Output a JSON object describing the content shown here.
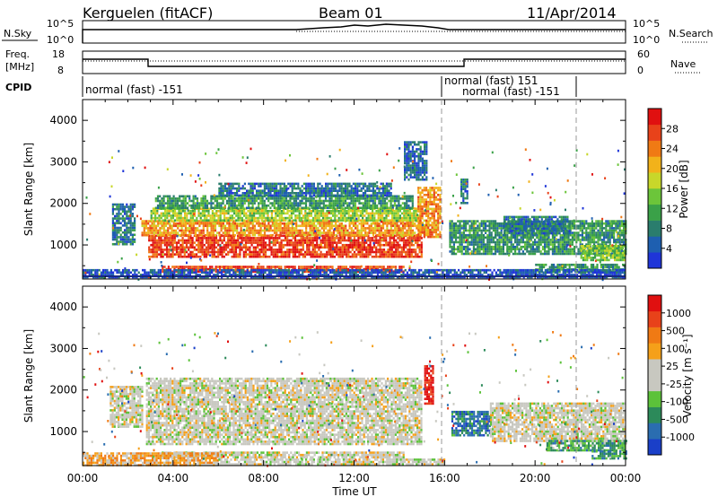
{
  "header": {
    "station": "Kerguelen (fitACF)",
    "beam": "Beam 01",
    "date": "11/Apr/2014"
  },
  "summary": {
    "nsky_label": "N.Sky",
    "nsky_ticks": [
      "10^5",
      "10^0"
    ],
    "nsearch_label": "N.Search",
    "nsearch_ticks": [
      "10^5",
      "10^0"
    ],
    "freq_label_line1": "Freq.",
    "freq_label_line2": "[MHz]",
    "freq_ticks": [
      "18",
      "8"
    ],
    "nave_label": "Nave",
    "nave_ticks": [
      "60",
      "0"
    ],
    "cpid_label": "CPID",
    "cpid_entries": [
      {
        "text": "normal (fast) -151",
        "start_hour": 0
      },
      {
        "text": "normal (fast) 151",
        "start_hour": 16
      },
      {
        "text": "normal (fast) -151",
        "start_hour": 16.9
      }
    ]
  },
  "chart_data": [
    {
      "type": "heatmap",
      "panel": "power",
      "ylabel": "Slant Range [km]",
      "xlabel": "",
      "ylim": [
        180,
        4500
      ],
      "yticks": [
        "1000",
        "2000",
        "3000",
        "4000"
      ],
      "xlim": [
        0,
        24
      ],
      "colorbar": {
        "label": "Power [dB]",
        "ticks": [
          "4",
          "8",
          "12",
          "16",
          "20",
          "24",
          "28"
        ],
        "colors": [
          "#1f35d8",
          "#1e5fb0",
          "#2a7d6d",
          "#3aa148",
          "#6cc53a",
          "#c8d72a",
          "#f2b21a",
          "#f07a14",
          "#e8421a",
          "#e01010"
        ]
      },
      "regions": [
        {
          "t0": 2.9,
          "t1": 15.0,
          "r0": 700,
          "r1": 1250,
          "level": 0.88
        },
        {
          "t0": 2.6,
          "t1": 15.3,
          "r0": 1250,
          "r1": 1600,
          "level": 0.7
        },
        {
          "t0": 3.0,
          "t1": 14.8,
          "r0": 1600,
          "r1": 1900,
          "level": 0.5
        },
        {
          "t0": 3.2,
          "t1": 14.6,
          "r0": 1900,
          "r1": 2200,
          "level": 0.32
        },
        {
          "t0": 6.0,
          "t1": 13.6,
          "r0": 2200,
          "r1": 2500,
          "level": 0.2
        },
        {
          "t0": 3.5,
          "t1": 14.2,
          "r0": 380,
          "r1": 500,
          "level": 0.85
        },
        {
          "t0": 1.3,
          "t1": 2.3,
          "r0": 1000,
          "r1": 2000,
          "level": 0.22
        },
        {
          "t0": 14.8,
          "t1": 15.8,
          "r0": 1200,
          "r1": 2400,
          "level": 0.72
        },
        {
          "t0": 16.2,
          "t1": 24.0,
          "r0": 800,
          "r1": 1600,
          "level": 0.3
        },
        {
          "t0": 18.6,
          "t1": 21.5,
          "r0": 1300,
          "r1": 1700,
          "level": 0.22
        },
        {
          "t0": 22.0,
          "t1": 24.0,
          "r0": 650,
          "r1": 1000,
          "level": 0.45
        },
        {
          "t0": 20.0,
          "t1": 24.0,
          "r0": 380,
          "r1": 550,
          "level": 0.3
        },
        {
          "t0": 0.0,
          "t1": 24.0,
          "r0": 200,
          "r1": 420,
          "level": 0.12
        },
        {
          "t0": 16.7,
          "t1": 17.0,
          "r0": 2000,
          "r1": 2600,
          "level": 0.2
        },
        {
          "t0": 14.2,
          "t1": 15.2,
          "r0": 2600,
          "r1": 3500,
          "level": 0.18
        }
      ]
    },
    {
      "type": "heatmap",
      "panel": "velocity",
      "ylabel": "Slant Range [km]",
      "xlabel": "Time UT",
      "ylim": [
        180,
        4500
      ],
      "yticks": [
        "1000",
        "2000",
        "3000",
        "4000"
      ],
      "xlim": [
        0,
        24
      ],
      "xticks": [
        "00:00",
        "04:00",
        "08:00",
        "12:00",
        "16:00",
        "20:00",
        "00:00"
      ],
      "colorbar": {
        "label": "Velocity [m s⁻¹]",
        "ticks": [
          "1000",
          "500",
          "100",
          "25",
          "-25",
          "-100",
          "-500",
          "-1000"
        ],
        "colors": [
          "#1a3fc8",
          "#2a6db0",
          "#2c8a5a",
          "#5cc23a",
          "#c8c8c0",
          "#c8c8c0",
          "#f5a019",
          "#f07a14",
          "#e8421a",
          "#e01010"
        ]
      },
      "regions": [
        {
          "t0": 2.8,
          "t1": 15.0,
          "r0": 700,
          "r1": 2300,
          "level": 0.5
        },
        {
          "t0": 3.5,
          "t1": 14.2,
          "r0": 380,
          "r1": 520,
          "level": 0.5
        },
        {
          "t0": 1.2,
          "t1": 2.6,
          "r0": 1100,
          "r1": 2100,
          "level": 0.5
        },
        {
          "t0": 15.1,
          "t1": 15.5,
          "r0": 1700,
          "r1": 2600,
          "level": 0.95
        },
        {
          "t0": 16.3,
          "t1": 18.0,
          "r0": 900,
          "r1": 1500,
          "level": 0.18
        },
        {
          "t0": 18.0,
          "t1": 24.0,
          "r0": 800,
          "r1": 1700,
          "level": 0.5
        },
        {
          "t0": 20.5,
          "t1": 24.0,
          "r0": 550,
          "r1": 800,
          "level": 0.3
        },
        {
          "t0": 22.5,
          "t1": 24.0,
          "r0": 350,
          "r1": 550,
          "level": 0.25
        },
        {
          "t0": 0.0,
          "t1": 6.0,
          "r0": 180,
          "r1": 500,
          "level": 0.65
        },
        {
          "t0": 6.0,
          "t1": 16.0,
          "r0": 200,
          "r1": 350,
          "level": 0.5
        }
      ]
    }
  ]
}
